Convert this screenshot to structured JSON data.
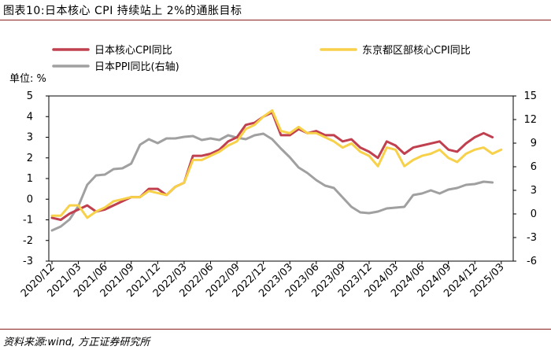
{
  "figure": {
    "title": "图表10:日本核心 CPI 持续站上 2%的通胀目标",
    "source": "资料来源:wind, 方正证券研究所"
  },
  "chart_data": {
    "type": "line",
    "unit_label": "单位: %",
    "x": [
      "2020/12",
      "2021/01",
      "2021/02",
      "2021/03",
      "2021/04",
      "2021/05",
      "2021/06",
      "2021/07",
      "2021/08",
      "2021/09",
      "2021/10",
      "2021/11",
      "2021/12",
      "2022/01",
      "2022/02",
      "2022/03",
      "2022/04",
      "2022/05",
      "2022/06",
      "2022/07",
      "2022/08",
      "2022/09",
      "2022/10",
      "2022/11",
      "2022/12",
      "2023/01",
      "2023/02",
      "2023/03",
      "2023/04",
      "2023/05",
      "2023/06",
      "2023/07",
      "2023/08",
      "2023/09",
      "2023/10",
      "2023/11",
      "2023/12",
      "2024/01",
      "2024/02",
      "2024/03",
      "2024/04",
      "2024/05",
      "2024/06",
      "2024/07",
      "2024/08",
      "2024/09",
      "2024/10",
      "2024/11",
      "2024/12",
      "2025/01",
      "2025/02",
      "2025/03",
      "2025/04"
    ],
    "x_tick_labels": [
      "2020/12",
      "2021/03",
      "2021/06",
      "2021/09",
      "2021/12",
      "2022/03",
      "2022/06",
      "2022/09",
      "2022/12",
      "2023/03",
      "2023/06",
      "2023/09",
      "2023/12",
      "2024/03",
      "2024/06",
      "2024/09",
      "2024/12",
      "2025/03"
    ],
    "y_left": {
      "min": -3,
      "max": 5,
      "ticks": [
        -3,
        -2,
        -1,
        0,
        1,
        2,
        3,
        4,
        5
      ]
    },
    "y_right": {
      "min": -6,
      "max": 15,
      "ticks": [
        -6,
        -3,
        0,
        3,
        6,
        9,
        12,
        15
      ]
    },
    "legend_position": "top",
    "series": [
      {
        "name": "日本核心CPI同比",
        "axis": "left",
        "color": "#c0404f",
        "values": [
          -0.9,
          -1.0,
          -0.7,
          -0.5,
          -0.3,
          -0.6,
          -0.5,
          -0.3,
          -0.1,
          0.1,
          0.1,
          0.5,
          0.5,
          0.2,
          0.6,
          0.8,
          2.1,
          2.1,
          2.2,
          2.4,
          2.8,
          3.0,
          3.6,
          3.7,
          4.0,
          4.2,
          3.1,
          3.1,
          3.4,
          3.2,
          3.3,
          3.1,
          3.1,
          2.8,
          2.9,
          2.5,
          2.3,
          2.0,
          2.8,
          2.6,
          2.2,
          2.5,
          2.6,
          2.7,
          2.8,
          2.4,
          2.3,
          2.7,
          3.0,
          3.2,
          3.0,
          null,
          null
        ]
      },
      {
        "name": "东京都区部核心CPI同比",
        "axis": "left",
        "color": "#f7d14a",
        "values": [
          -0.8,
          -0.8,
          -0.3,
          -0.3,
          -0.9,
          -0.6,
          -0.4,
          -0.1,
          0.0,
          0.1,
          0.1,
          0.4,
          0.3,
          0.2,
          0.6,
          0.8,
          1.9,
          1.9,
          2.1,
          2.3,
          2.6,
          2.8,
          3.4,
          3.6,
          4.0,
          4.3,
          3.3,
          3.2,
          3.5,
          3.2,
          3.2,
          3.0,
          2.8,
          2.5,
          2.7,
          2.3,
          2.1,
          1.6,
          2.5,
          2.4,
          1.6,
          1.9,
          2.1,
          2.2,
          2.4,
          2.0,
          1.8,
          2.2,
          2.4,
          2.5,
          2.2,
          2.4,
          null
        ]
      },
      {
        "name": "日本PPI同比(右轴)",
        "axis": "right",
        "color": "#a0a0a0",
        "values": [
          -2.1,
          -1.6,
          -0.7,
          1.0,
          3.7,
          4.9,
          5.0,
          5.7,
          5.8,
          6.4,
          8.8,
          9.5,
          9.0,
          9.6,
          9.6,
          9.8,
          9.9,
          9.4,
          9.6,
          9.4,
          10.0,
          9.7,
          9.5,
          10.0,
          10.2,
          9.5,
          8.3,
          7.2,
          5.9,
          5.2,
          4.3,
          3.6,
          3.3,
          2.1,
          0.9,
          0.2,
          0.1,
          0.3,
          0.7,
          0.8,
          0.9,
          2.4,
          2.6,
          3.0,
          2.6,
          3.1,
          3.3,
          3.7,
          3.8,
          4.1,
          4.0,
          null,
          null
        ]
      }
    ]
  }
}
